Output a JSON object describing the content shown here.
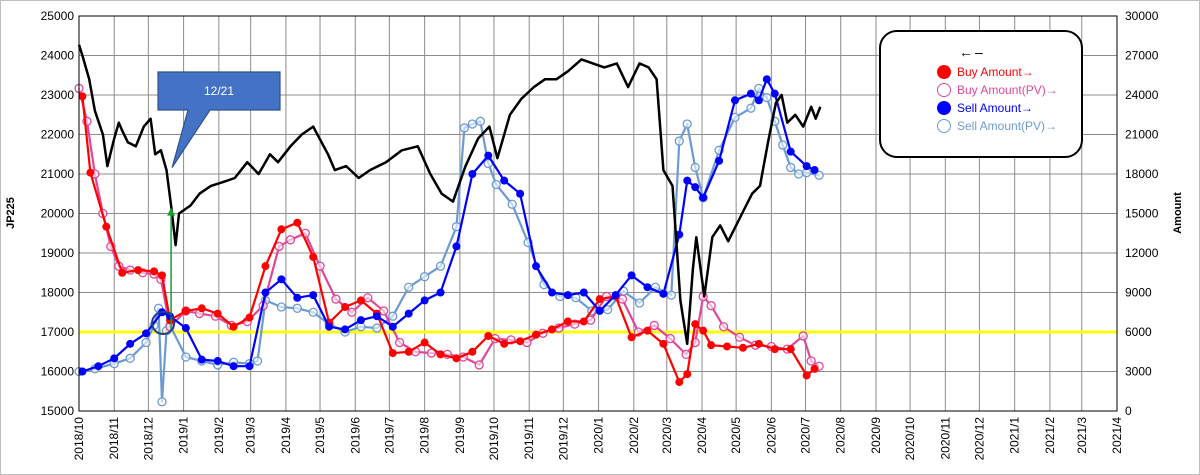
{
  "chart_data": {
    "type": "line",
    "left_axis": {
      "label": "JP225",
      "min": 15000,
      "max": 25000,
      "step": 1000,
      "ticks": [
        "15000",
        "16000",
        "17000",
        "18000",
        "19000",
        "20000",
        "21000",
        "22000",
        "23000",
        "24000",
        "25000"
      ]
    },
    "right_axis": {
      "label": "Amount",
      "min": 0,
      "max": 30000,
      "step": 3000,
      "ticks": [
        "0",
        "3000",
        "6000",
        "9000",
        "12000",
        "15000",
        "18000",
        "21000",
        "24000",
        "27000",
        "30000"
      ]
    },
    "x_ticks": [
      "2018/10",
      "2018/11",
      "2018/12",
      "2019/1",
      "2019/2",
      "2019/3",
      "2019/4",
      "2019/5",
      "2019/6",
      "2019/7",
      "2019/8",
      "2019/9",
      "2019/10",
      "2019/11",
      "2019/12",
      "2020/1",
      "2020/2",
      "2020/3",
      "2020/4",
      "2020/5",
      "2020/6",
      "2020/7",
      "2020/8",
      "2020/9",
      "2020/10",
      "2020/11",
      "2020/12",
      "2021/1",
      "2021/2",
      "2021/3",
      "2021/4"
    ],
    "grid": true,
    "reference_line": {
      "axis": "right",
      "value": 6000,
      "color": "#ffff00"
    },
    "annotation": {
      "text": "12/21",
      "date": "2018/12/21"
    },
    "legend": [
      {
        "name": "←–",
        "style": "line",
        "color": "#000000"
      },
      {
        "name": "Buy Amount→",
        "style": "filled",
        "color": "#ff0000"
      },
      {
        "name": "Buy Amount(PV)→",
        "style": "hollow",
        "color": "#e0479a"
      },
      {
        "name": "Sell Amount→",
        "style": "filled",
        "color": "#0000ff"
      },
      {
        "name": "Sell Amount(PV)→",
        "style": "hollow",
        "color": "#6c9bd2"
      }
    ],
    "series": [
      {
        "name": "JP225",
        "axis": "left",
        "color": "#000000",
        "x": [
          "2018/10/01",
          "2018/10/04",
          "2018/10/10",
          "2018/10/15",
          "2018/10/22",
          "2018/10/26",
          "2018/11/01",
          "2018/11/05",
          "2018/11/08",
          "2018/11/13",
          "2018/11/20",
          "2018/11/27",
          "2018/12/03",
          "2018/12/07",
          "2018/12/12",
          "2018/12/17",
          "2018/12/21",
          "2018/12/25",
          "2018/12/28",
          "2019/01/07",
          "2019/01/15",
          "2019/01/25",
          "2019/02/05",
          "2019/02/15",
          "2019/02/26",
          "2019/03/08",
          "2019/03/18",
          "2019/03/25",
          "2019/04/05",
          "2019/04/15",
          "2019/04/25",
          "2019/05/08",
          "2019/05/14",
          "2019/05/24",
          "2019/06/04",
          "2019/06/14",
          "2019/06/28",
          "2019/07/12",
          "2019/07/26",
          "2019/08/06",
          "2019/08/16",
          "2019/08/26",
          "2019/09/06",
          "2019/09/17",
          "2019/09/27",
          "2019/10/04",
          "2019/10/15",
          "2019/10/25",
          "2019/11/05",
          "2019/11/15",
          "2019/11/25",
          "2019/12/05",
          "2019/12/17",
          "2019/12/27",
          "2020/01/06",
          "2020/01/17",
          "2020/01/27",
          "2020/02/06",
          "2020/02/14",
          "2020/02/21",
          "2020/02/27",
          "2020/03/06",
          "2020/03/13",
          "2020/03/19",
          "2020/03/24",
          "2020/03/27",
          "2020/04/03",
          "2020/04/10",
          "2020/04/17",
          "2020/04/24",
          "2020/05/01",
          "2020/05/08",
          "2020/05/15",
          "2020/05/22",
          "2020/05/29",
          "2020/06/05",
          "2020/06/10",
          "2020/06/15",
          "2020/06/22",
          "2020/06/29",
          "2020/07/06",
          "2020/07/10",
          "2020/07/14"
        ],
        "values": [
          24270,
          24000,
          23400,
          22600,
          22000,
          21200,
          21900,
          22300,
          22100,
          21800,
          21700,
          22200,
          22400,
          21500,
          21600,
          21100,
          20200,
          19200,
          20000,
          20200,
          20500,
          20700,
          20800,
          20900,
          21300,
          21000,
          21500,
          21300,
          21700,
          22000,
          22200,
          21500,
          21100,
          21200,
          20900,
          21100,
          21300,
          21600,
          21700,
          21000,
          20500,
          20300,
          21200,
          21900,
          22200,
          21400,
          22500,
          22900,
          23200,
          23400,
          23400,
          23600,
          23900,
          23800,
          23700,
          23800,
          23200,
          23800,
          23700,
          23400,
          21100,
          20700,
          17800,
          16700,
          18600,
          19400,
          17900,
          19400,
          19700,
          19300,
          19700,
          20100,
          20500,
          20700,
          21800,
          22800,
          23000,
          22300,
          22500,
          22200,
          22700,
          22400,
          22700
        ]
      },
      {
        "name": "Buy Amount",
        "axis": "right",
        "color": "#ff0000",
        "style": "filled",
        "x": [
          "2018/10/04",
          "2018/10/11",
          "2018/10/25",
          "2018/11/08",
          "2018/11/22",
          "2018/12/06",
          "2018/12/13",
          "2018/12/20",
          "2019/01/03",
          "2019/01/17",
          "2019/01/31",
          "2019/02/14",
          "2019/02/28",
          "2019/03/14",
          "2019/03/28",
          "2019/04/11",
          "2019/04/25",
          "2019/05/09",
          "2019/05/23",
          "2019/06/06",
          "2019/06/20",
          "2019/07/04",
          "2019/07/18",
          "2019/08/01",
          "2019/08/15",
          "2019/08/29",
          "2019/09/12",
          "2019/09/26",
          "2019/10/10",
          "2019/10/24",
          "2019/11/07",
          "2019/11/21",
          "2019/12/05",
          "2019/12/19",
          "2020/01/02",
          "2020/01/16",
          "2020/01/30",
          "2020/02/13",
          "2020/02/27",
          "2020/03/12",
          "2020/03/19",
          "2020/03/26",
          "2020/04/02",
          "2020/04/09",
          "2020/04/23",
          "2020/05/07",
          "2020/05/21",
          "2020/06/04",
          "2020/06/18",
          "2020/07/02",
          "2020/07/09"
        ],
        "values": [
          23900,
          18100,
          14000,
          10500,
          10700,
          10600,
          10300,
          6900,
          7600,
          7800,
          7400,
          6400,
          7100,
          11000,
          13800,
          14300,
          11700,
          6700,
          7900,
          8400,
          7400,
          4400,
          4500,
          5200,
          4300,
          4000,
          4500,
          5700,
          5100,
          5300,
          5800,
          6200,
          6800,
          6800,
          8500,
          8700,
          5600,
          6100,
          5100,
          2200,
          2800,
          6600,
          6100,
          5000,
          4900,
          4800,
          5100,
          4700,
          4700,
          2700,
          3200
        ]
      },
      {
        "name": "Buy Amount(PV)",
        "axis": "right",
        "color": "#e0479a",
        "style": "hollow",
        "x": [
          "2018/10/01",
          "2018/10/08",
          "2018/10/15",
          "2018/10/22",
          "2018/10/29",
          "2018/11/05",
          "2018/11/15",
          "2018/11/26",
          "2018/12/06",
          "2018/12/12",
          "2018/12/20",
          "2019/01/03",
          "2019/01/15",
          "2019/01/29",
          "2019/02/12",
          "2019/02/26",
          "2019/03/12",
          "2019/03/26",
          "2019/04/05",
          "2019/04/18",
          "2019/05/01",
          "2019/05/15",
          "2019/05/29",
          "2019/06/12",
          "2019/06/26",
          "2019/07/10",
          "2019/07/24",
          "2019/08/07",
          "2019/08/21",
          "2019/09/04",
          "2019/09/18",
          "2019/10/02",
          "2019/10/16",
          "2019/10/30",
          "2019/11/13",
          "2019/11/27",
          "2019/12/11",
          "2019/12/25",
          "2020/01/08",
          "2020/01/22",
          "2020/02/05",
          "2020/02/19",
          "2020/03/04",
          "2020/03/18",
          "2020/03/26",
          "2020/04/02",
          "2020/04/09",
          "2020/04/20",
          "2020/05/04",
          "2020/05/18",
          "2020/06/01",
          "2020/06/15",
          "2020/06/29",
          "2020/07/06",
          "2020/07/13"
        ],
        "values": [
          24500,
          22000,
          18000,
          15000,
          12500,
          11000,
          10700,
          10500,
          10400,
          10000,
          6400,
          7600,
          7400,
          7200,
          6500,
          6800,
          8000,
          12500,
          13000,
          13500,
          11000,
          8500,
          7500,
          8600,
          7600,
          5200,
          4500,
          4400,
          4300,
          4100,
          3500,
          5500,
          5400,
          5200,
          5900,
          6300,
          6600,
          6900,
          8700,
          8500,
          6000,
          6500,
          5500,
          4300,
          5200,
          8700,
          8000,
          6400,
          5600,
          5000,
          4900,
          4700,
          5700,
          3800,
          3400
        ]
      },
      {
        "name": "Sell Amount",
        "axis": "right",
        "color": "#0000ff",
        "style": "filled",
        "x": [
          "2018/10/04",
          "2018/10/18",
          "2018/11/01",
          "2018/11/15",
          "2018/11/29",
          "2018/12/13",
          "2018/12/20",
          "2019/01/03",
          "2019/01/17",
          "2019/01/31",
          "2019/02/14",
          "2019/02/28",
          "2019/03/14",
          "2019/03/28",
          "2019/04/11",
          "2019/04/25",
          "2019/05/09",
          "2019/05/23",
          "2019/06/06",
          "2019/06/20",
          "2019/07/04",
          "2019/07/18",
          "2019/08/01",
          "2019/08/15",
          "2019/08/29",
          "2019/09/12",
          "2019/09/26",
          "2019/10/10",
          "2019/10/24",
          "2019/11/07",
          "2019/11/21",
          "2019/12/05",
          "2019/12/19",
          "2020/01/02",
          "2020/01/16",
          "2020/01/30",
          "2020/02/13",
          "2020/02/27",
          "2020/03/12",
          "2020/03/19",
          "2020/03/26",
          "2020/04/02",
          "2020/04/16",
          "2020/04/30",
          "2020/05/14",
          "2020/05/21",
          "2020/05/28",
          "2020/06/04",
          "2020/06/18",
          "2020/07/02",
          "2020/07/09"
        ],
        "values": [
          3000,
          3400,
          4000,
          5100,
          5900,
          7500,
          7200,
          6300,
          3900,
          3800,
          3400,
          3400,
          9000,
          10000,
          8600,
          8800,
          6400,
          6200,
          6900,
          7200,
          6400,
          7400,
          8400,
          9000,
          12500,
          18000,
          19400,
          17500,
          16500,
          11000,
          9000,
          8800,
          9000,
          7600,
          8800,
          10300,
          9400,
          8900,
          13400,
          17500,
          17000,
          16200,
          19000,
          23600,
          24100,
          23600,
          25200,
          24100,
          19700,
          18600,
          18300
        ]
      },
      {
        "name": "Sell Amount(PV)",
        "axis": "right",
        "color": "#6c9bd2",
        "style": "hollow",
        "x": [
          "2018/10/01",
          "2018/10/15",
          "2018/11/01",
          "2018/11/15",
          "2018/11/29",
          "2018/12/06",
          "2018/12/10",
          "2018/12/13",
          "2018/12/17",
          "2018/12/20",
          "2019/01/03",
          "2019/01/17",
          "2019/01/31",
          "2019/02/14",
          "2019/02/28",
          "2019/03/07",
          "2019/03/14",
          "2019/03/28",
          "2019/04/11",
          "2019/04/25",
          "2019/05/09",
          "2019/05/23",
          "2019/06/06",
          "2019/06/20",
          "2019/07/04",
          "2019/07/18",
          "2019/08/01",
          "2019/08/15",
          "2019/08/29",
          "2019/09/05",
          "2019/09/12",
          "2019/09/19",
          "2019/09/26",
          "2019/10/03",
          "2019/10/17",
          "2019/10/31",
          "2019/11/14",
          "2019/11/28",
          "2019/12/12",
          "2019/12/26",
          "2020/01/09",
          "2020/01/23",
          "2020/02/06",
          "2020/02/20",
          "2020/03/05",
          "2020/03/12",
          "2020/03/19",
          "2020/03/26",
          "2020/04/02",
          "2020/04/16",
          "2020/04/30",
          "2020/05/14",
          "2020/05/21",
          "2020/05/28",
          "2020/06/04",
          "2020/06/11",
          "2020/06/18",
          "2020/06/25",
          "2020/07/02",
          "2020/07/13"
        ],
        "values": [
          3000,
          3200,
          3600,
          4000,
          5200,
          6500,
          7800,
          700,
          6100,
          6500,
          4100,
          3800,
          3500,
          3700,
          3600,
          3800,
          8400,
          7900,
          7800,
          7500,
          6600,
          6000,
          6400,
          6300,
          7200,
          9400,
          10200,
          11000,
          14000,
          21500,
          21800,
          22000,
          18800,
          17200,
          15700,
          12800,
          9600,
          8700,
          8600,
          7600,
          7700,
          9100,
          8200,
          9400,
          8800,
          20500,
          21800,
          18500,
          16200,
          19800,
          22300,
          23000,
          24500,
          23800,
          22000,
          20200,
          18500,
          18000,
          18100,
          17900
        ]
      }
    ]
  }
}
